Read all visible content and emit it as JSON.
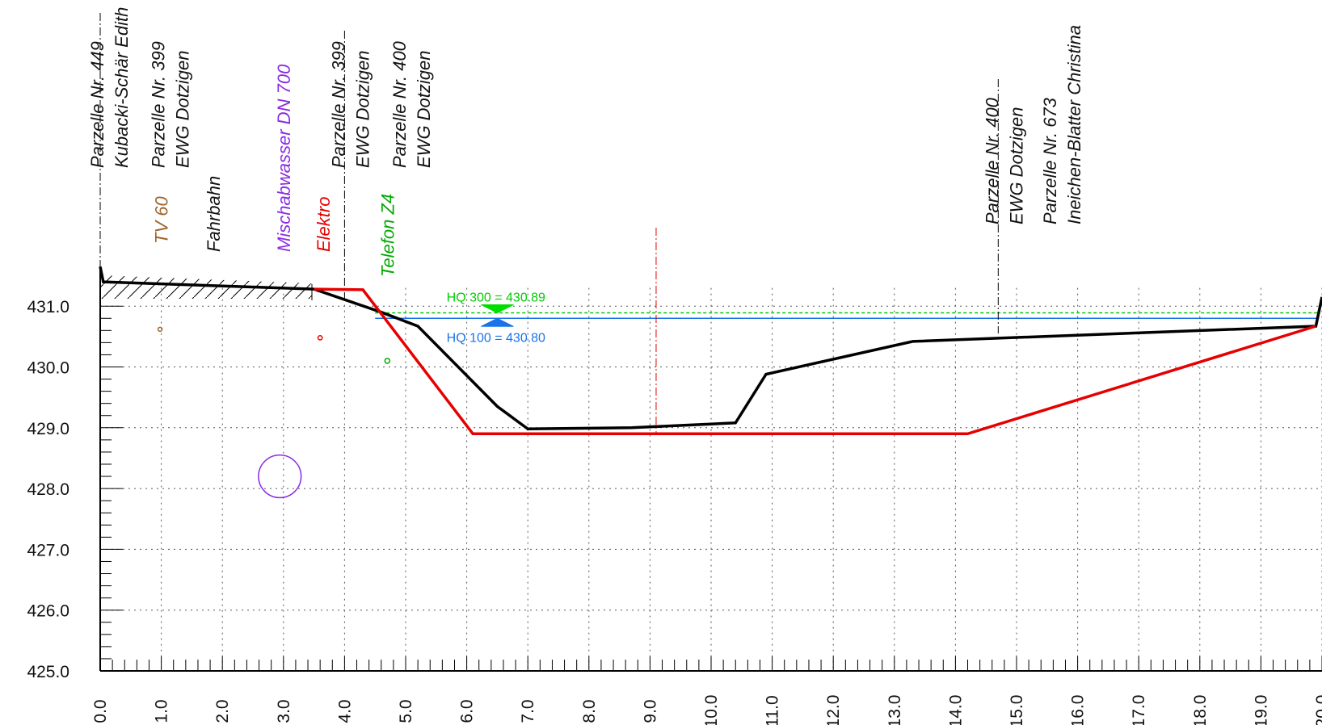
{
  "chart_data": {
    "type": "cross-section",
    "title": "",
    "xlabel": "",
    "ylabel": "",
    "xlim": [
      0,
      20
    ],
    "ylim": [
      425,
      431.5
    ],
    "x_ticks": [
      0,
      1,
      2,
      3,
      4,
      5,
      6,
      7,
      8,
      9,
      10,
      11,
      12,
      13,
      14,
      15,
      16,
      17,
      18,
      19,
      20
    ],
    "x_tick_labels": [
      "0.0",
      "1.0",
      "2.0",
      "3.0",
      "4.0",
      "5.0",
      "6.0",
      "7.0",
      "8.0",
      "9.0",
      "10.0",
      "11.0",
      "12.0",
      "13.0",
      "14.0",
      "15.0",
      "16.0",
      "17.0",
      "18.0",
      "19.0",
      "20.0"
    ],
    "y_ticks": [
      425,
      426,
      427,
      428,
      429,
      430,
      431
    ],
    "y_tick_labels": [
      "425.0",
      "426.0",
      "427.0",
      "428.0",
      "429.0",
      "430.0",
      "431.0"
    ],
    "grid": true,
    "series": [
      {
        "key": "terrain",
        "color": "#000000",
        "points": [
          [
            0,
            431.65
          ],
          [
            0.05,
            431.4
          ],
          [
            3.5,
            431.28
          ],
          [
            4.6,
            430.9
          ],
          [
            5.2,
            430.67
          ],
          [
            6.5,
            429.35
          ],
          [
            7.0,
            428.98
          ],
          [
            8.7,
            429.0
          ],
          [
            10.4,
            429.08
          ],
          [
            10.9,
            429.88
          ],
          [
            13.3,
            430.42
          ],
          [
            19.9,
            430.67
          ],
          [
            20.0,
            431.15
          ]
        ]
      },
      {
        "key": "project",
        "color": "#e60000",
        "points": [
          [
            3.5,
            431.28
          ],
          [
            4.3,
            431.27
          ],
          [
            6.1,
            428.9
          ],
          [
            14.2,
            428.9
          ],
          [
            19.9,
            430.67
          ]
        ]
      }
    ],
    "water_levels": [
      {
        "label": "HQ 300 = 430.89",
        "value": 430.89,
        "color": "#00cc00"
      },
      {
        "label": "HQ 100 = 430.80",
        "value": 430.8,
        "color": "#1a73e8"
      }
    ],
    "axis_marker": {
      "x": 9.1,
      "color": "#e60000"
    },
    "boundaries": [
      {
        "x": 0.0,
        "color": "#000000"
      },
      {
        "x": 4.0,
        "color": "#000000"
      },
      {
        "x": 14.7,
        "color": "#000000"
      }
    ],
    "pipes": [
      {
        "name": "TV 60",
        "x": 0.98,
        "y": 430.62,
        "diameter": 0.06,
        "color": "#a0642a"
      },
      {
        "name": "Elektro",
        "x": 3.6,
        "y": 430.48,
        "diameter": 0.07,
        "color": "#e60000"
      },
      {
        "name": "Telefon Z4",
        "x": 4.7,
        "y": 430.1,
        "diameter": 0.08,
        "color": "#00aa00"
      },
      {
        "name": "Mischabwasser DN 700",
        "x": 2.94,
        "y": 428.2,
        "diameter": 0.7,
        "color": "#8a2be2"
      }
    ],
    "top_labels": [
      {
        "key": "p449",
        "lines": [
          "Parzelle Nr. 449",
          "Kubacki-Schär Edith"
        ],
        "x": -0.4,
        "color": "#111111"
      },
      {
        "key": "p399a",
        "lines": [
          "Parzelle Nr. 399",
          "EWG Dotzigen"
        ],
        "x": 0.6,
        "color": "#111111"
      },
      {
        "key": "p399b",
        "lines": [
          "Parzelle Nr. 399",
          "EWG Dotzigen"
        ],
        "x": 3.55,
        "color": "#111111"
      },
      {
        "key": "p400a",
        "lines": [
          "Parzelle Nr. 400",
          "EWG Dotzigen"
        ],
        "x": 4.55,
        "color": "#111111"
      },
      {
        "key": "p400b",
        "lines": [
          "Parzelle Nr. 400",
          "EWG Dotzigen"
        ],
        "x": 14.25,
        "color": "#111111"
      },
      {
        "key": "p673",
        "lines": [
          "Parzelle Nr. 673",
          "Ineichen-Blatter Christina"
        ],
        "x": 15.2,
        "color": "#111111"
      }
    ],
    "mid_labels": [
      {
        "key": "tv60",
        "text": "TV 60",
        "x": 1.0,
        "color": "#a0642a"
      },
      {
        "key": "fahrbahn",
        "text": "Fahrbahn",
        "x": 1.85,
        "color": "#111111"
      },
      {
        "key": "mischwasser",
        "text": "Mischabwasser DN 700",
        "x": 3.0,
        "color": "#8a2be2"
      },
      {
        "key": "elektro",
        "text": "Elektro",
        "x": 3.65,
        "color": "#e60000"
      },
      {
        "key": "telefon",
        "text": "Telefon Z4",
        "x": 4.7,
        "color": "#00aa00"
      }
    ]
  }
}
